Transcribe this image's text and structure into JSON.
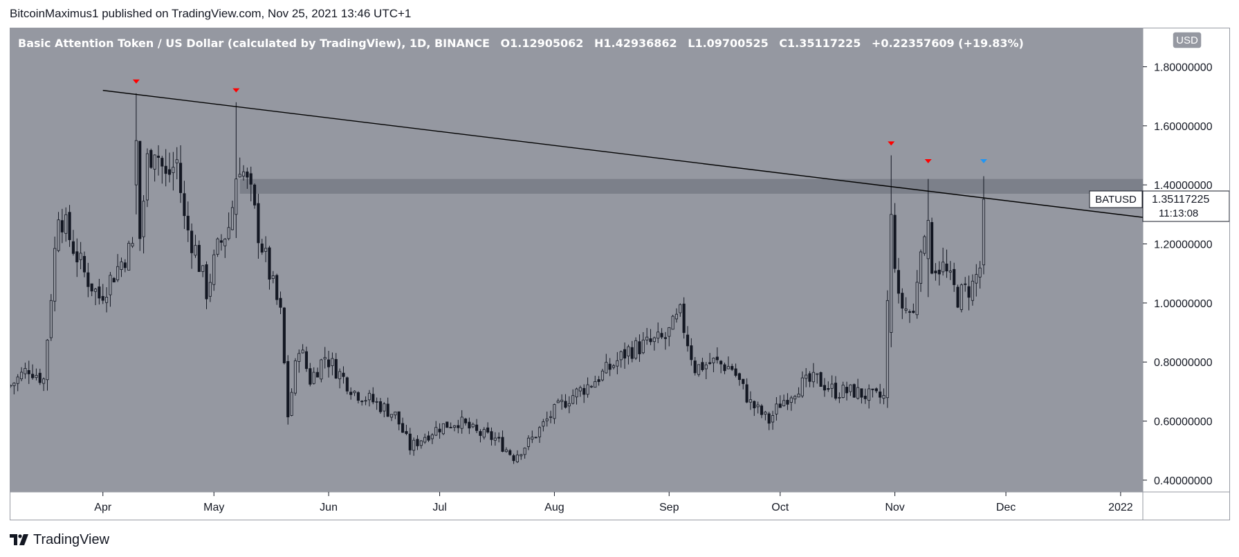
{
  "header": {
    "published_line": "BitcoinMaximus1 published on TradingView.com, Nov 25, 2021 13:46 UTC+1"
  },
  "footer": {
    "brand": "TradingView"
  },
  "legend": {
    "instrument": "Basic Attention Token / US Dollar (calculated by TradingView), 1D, BINANCE",
    "o_label": "O",
    "o_value": "1.12905062",
    "h_label": "H",
    "h_value": "1.42936862",
    "l_label": "L",
    "l_value": "1.09700525",
    "c_label": "C",
    "c_value": "1.35117225",
    "change": "+0.22357609 (+19.83%)"
  },
  "currency_button": "USD",
  "price_tag": {
    "symbol": "BATUSD",
    "price": "1.35117225",
    "countdown": "11:13:08"
  },
  "colors": {
    "plot_bg": "#9598a1",
    "axis_bg": "#ffffff",
    "candle_body": "#131722",
    "candle_up_fill": "#9598a1",
    "trendline": "#000000",
    "zone": "#787b86",
    "marker_red": "#ff0000",
    "marker_blue": "#2196f3"
  },
  "chart_data": {
    "type": "candlestick",
    "title": "Basic Attention Token / US Dollar (calculated by TradingView), 1D, BINANCE",
    "y_ticks": [
      "0.40000000",
      "0.60000000",
      "0.80000000",
      "1.00000000",
      "1.20000000",
      "1.40000000",
      "1.60000000",
      "1.80000000"
    ],
    "y_tick_values": [
      0.4,
      0.6,
      0.8,
      1.0,
      1.2,
      1.4,
      1.6,
      1.8
    ],
    "ylim": [
      0.36,
      1.93
    ],
    "x_ticks": [
      "Apr",
      "May",
      "Jun",
      "Jul",
      "Aug",
      "Sep",
      "Oct",
      "Nov",
      "Dec",
      "2022"
    ],
    "x_tick_dates": [
      "2021-04-01",
      "2021-05-01",
      "2021-06-01",
      "2021-07-01",
      "2021-08-01",
      "2021-09-01",
      "2021-10-01",
      "2021-11-01",
      "2021-12-01",
      "2022-01-01"
    ],
    "xlim": [
      "2021-03-07",
      "2022-01-07"
    ],
    "anchors": [
      [
        "2021-03-07",
        0.72
      ],
      [
        "2021-03-12",
        0.78
      ],
      [
        "2021-03-16",
        0.74
      ],
      [
        "2021-03-20",
        1.32
      ],
      [
        "2021-03-23",
        1.22
      ],
      [
        "2021-03-27",
        1.1
      ],
      [
        "2021-03-31",
        1.02
      ],
      [
        "2021-04-04",
        1.1
      ],
      [
        "2021-04-07",
        1.16
      ],
      [
        "2021-04-11",
        1.22
      ],
      [
        "2021-04-13",
        1.48
      ],
      [
        "2021-04-15",
        1.54
      ],
      [
        "2021-04-18",
        1.42
      ],
      [
        "2021-04-21",
        1.48
      ],
      [
        "2021-04-23",
        1.28
      ],
      [
        "2021-04-26",
        1.18
      ],
      [
        "2021-04-29",
        1.04
      ],
      [
        "2021-05-02",
        1.18
      ],
      [
        "2021-05-05",
        1.26
      ],
      [
        "2021-05-08",
        1.48
      ],
      [
        "2021-05-11",
        1.36
      ],
      [
        "2021-05-13",
        1.24
      ],
      [
        "2021-05-16",
        1.1
      ],
      [
        "2021-05-19",
        0.96
      ],
      [
        "2021-05-21",
        0.62
      ],
      [
        "2021-05-24",
        0.86
      ],
      [
        "2021-05-27",
        0.74
      ],
      [
        "2021-05-31",
        0.82
      ],
      [
        "2021-06-04",
        0.76
      ],
      [
        "2021-06-08",
        0.7
      ],
      [
        "2021-06-14",
        0.66
      ],
      [
        "2021-06-19",
        0.62
      ],
      [
        "2021-06-23",
        0.51
      ],
      [
        "2021-06-27",
        0.55
      ],
      [
        "2021-07-01",
        0.58
      ],
      [
        "2021-07-06",
        0.6
      ],
      [
        "2021-07-11",
        0.56
      ],
      [
        "2021-07-16",
        0.54
      ],
      [
        "2021-07-21",
        0.48
      ],
      [
        "2021-07-26",
        0.54
      ],
      [
        "2021-07-31",
        0.62
      ],
      [
        "2021-08-05",
        0.68
      ],
      [
        "2021-08-10",
        0.72
      ],
      [
        "2021-08-16",
        0.78
      ],
      [
        "2021-08-21",
        0.84
      ],
      [
        "2021-08-26",
        0.86
      ],
      [
        "2021-08-31",
        0.88
      ],
      [
        "2021-09-04",
        0.96
      ],
      [
        "2021-09-08",
        0.78
      ],
      [
        "2021-09-13",
        0.8
      ],
      [
        "2021-09-18",
        0.78
      ],
      [
        "2021-09-23",
        0.66
      ],
      [
        "2021-09-28",
        0.6
      ],
      [
        "2021-10-01",
        0.66
      ],
      [
        "2021-10-06",
        0.72
      ],
      [
        "2021-10-11",
        0.74
      ],
      [
        "2021-10-16",
        0.7
      ],
      [
        "2021-10-21",
        0.7
      ],
      [
        "2021-10-26",
        0.68
      ],
      [
        "2021-10-29",
        0.68
      ],
      [
        "2021-10-31",
        1.3
      ],
      [
        "2021-11-02",
        1.0
      ],
      [
        "2021-11-06",
        0.96
      ],
      [
        "2021-11-08",
        1.22
      ],
      [
        "2021-11-10",
        1.14
      ],
      [
        "2021-11-14",
        1.12
      ],
      [
        "2021-11-18",
        1.02
      ],
      [
        "2021-11-22",
        1.06
      ],
      [
        "2021-11-24",
        1.12
      ],
      [
        "2021-11-25",
        1.35
      ]
    ],
    "special_candles": [
      {
        "date": "2021-04-10",
        "o": 1.4,
        "h": 1.71,
        "l": 1.3,
        "c": 1.55
      },
      {
        "date": "2021-05-07",
        "o": 1.3,
        "h": 1.68,
        "l": 1.22,
        "c": 1.42
      },
      {
        "date": "2021-10-31",
        "o": 0.9,
        "h": 1.5,
        "l": 0.85,
        "c": 1.3
      },
      {
        "date": "2021-11-10",
        "o": 1.15,
        "h": 1.42,
        "l": 1.02,
        "c": 1.28
      },
      {
        "date": "2021-11-25",
        "o": 1.12905062,
        "h": 1.42936862,
        "l": 1.09700525,
        "c": 1.35117225
      }
    ],
    "resistance_zone": {
      "from_date": "2021-05-08",
      "low": 1.37,
      "high": 1.42
    },
    "trendline": [
      [
        "2021-04-01",
        1.72
      ],
      [
        "2022-01-07",
        1.29
      ]
    ],
    "markers": [
      {
        "date": "2021-04-10",
        "price": 1.75,
        "color": "red"
      },
      {
        "date": "2021-05-07",
        "price": 1.72,
        "color": "red"
      },
      {
        "date": "2021-10-31",
        "price": 1.54,
        "color": "red"
      },
      {
        "date": "2021-11-10",
        "price": 1.48,
        "color": "red"
      },
      {
        "date": "2021-11-25",
        "price": 1.48,
        "color": "blue"
      }
    ],
    "last_price": 1.35117225
  }
}
